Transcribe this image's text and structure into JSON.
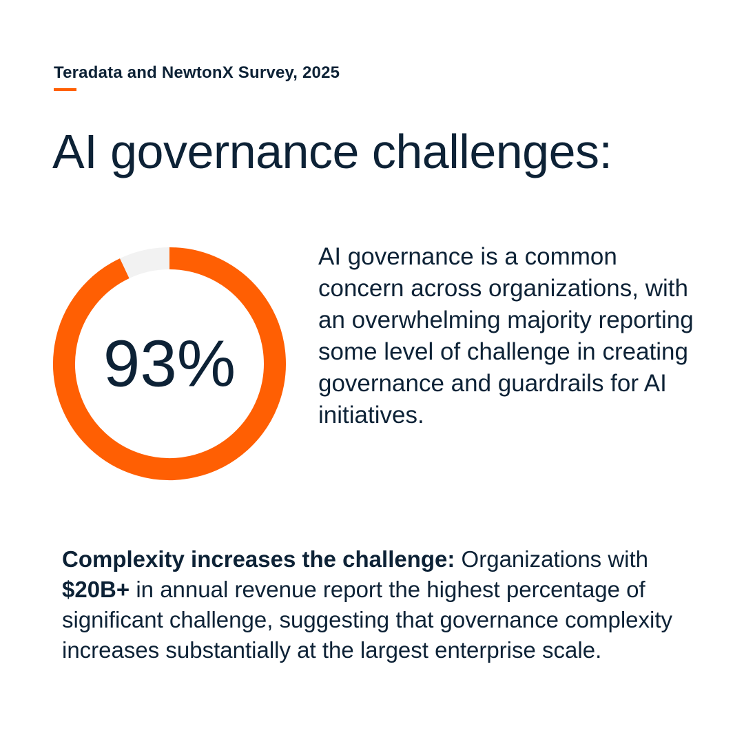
{
  "source": "Teradata and NewtonX Survey, 2025",
  "headline": "AI governance challenges:",
  "chart_data": {
    "type": "pie",
    "style": "donut",
    "slices": [
      {
        "label": "",
        "value": 93,
        "color": "#ff5f03"
      },
      {
        "label": "",
        "value": 7,
        "color": "#f2f2f2"
      }
    ],
    "center_label": "93%"
  },
  "description": "AI governance is a common concern across organizations, with an overwhelming majority reporting some level of challenge in creating governance and guardrails for AI initiatives.",
  "note": {
    "lead": "Complexity increases the challenge:",
    "part1": " Organizations with ",
    "highlight": "$20B+",
    "part2": " in annual revenue report the highest percentage of significant challenge, suggesting that governance complexity increases substantially at the largest enterprise scale."
  },
  "colors": {
    "accent": "#ff5f03",
    "text": "#0d2236",
    "track": "#f2f2f2"
  }
}
